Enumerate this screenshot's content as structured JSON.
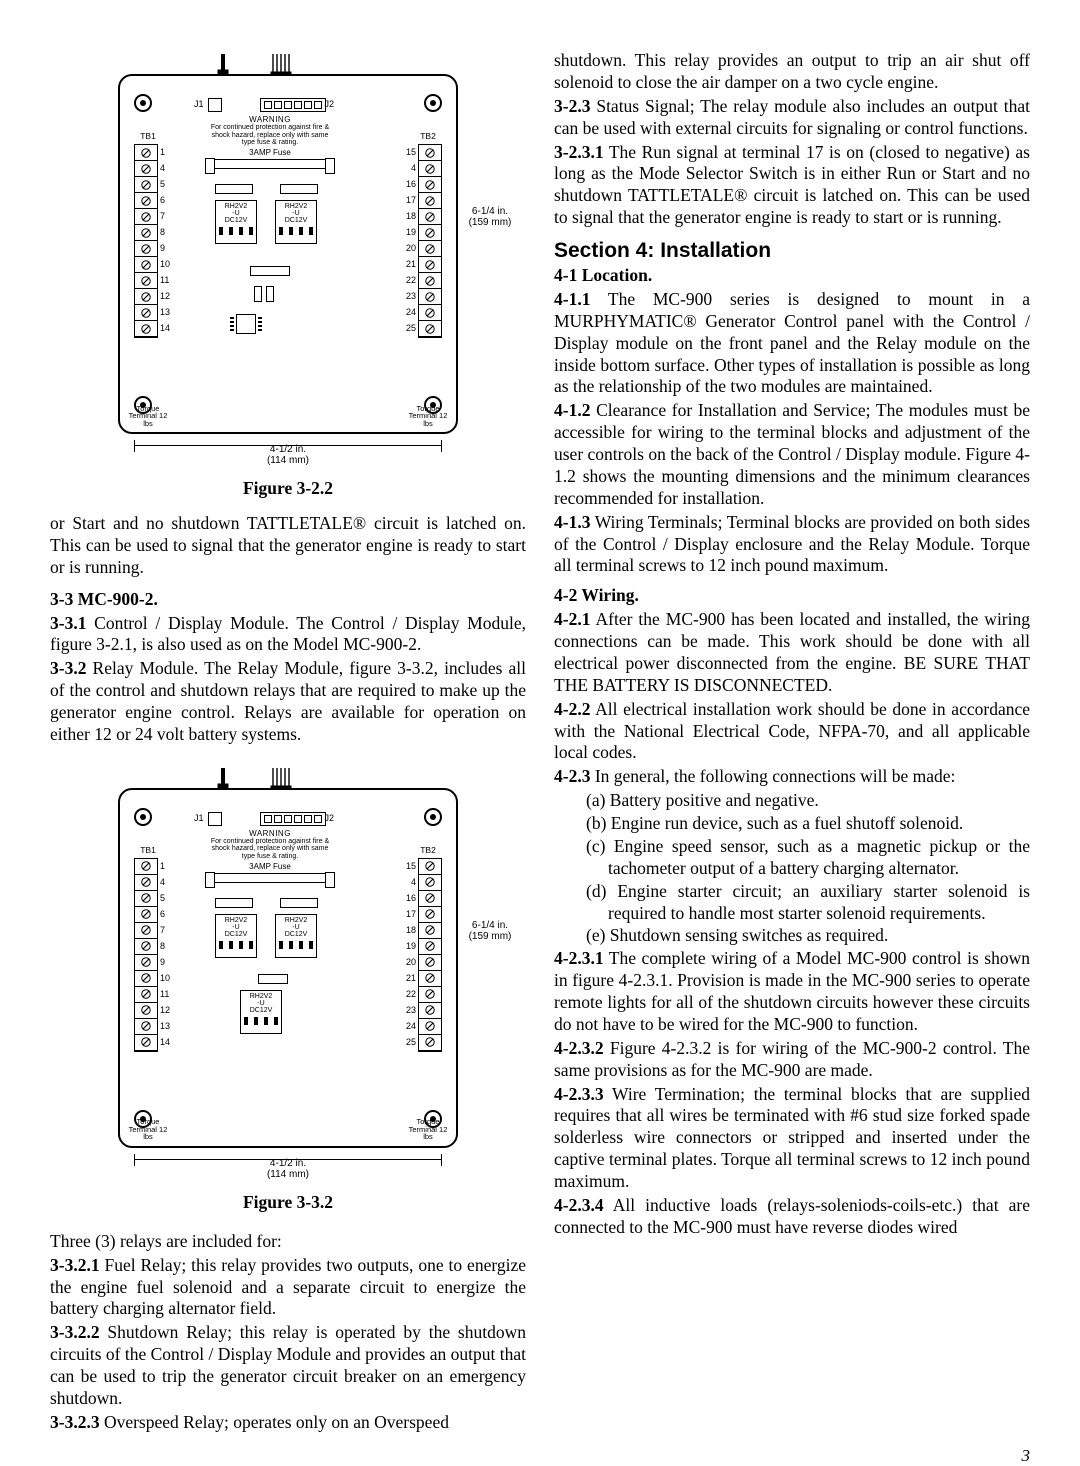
{
  "page_number": "3",
  "figure": {
    "caption_322": "Figure 3-2.2",
    "caption_332": "Figure 3-3.2",
    "j1": "J1",
    "j2": "J2",
    "tb1": "TB1",
    "tb2": "TB2",
    "warning_line1": "WARNING",
    "warning_line2": "For continued protection against fire & shock hazard, replace only with same type fuse & rating.",
    "fuse": "3AMP Fuse",
    "relay_l1": "RH2V2",
    "relay_l2": "-U",
    "relay_l3": "DC12V",
    "torque": "Torque Terminal 12 lbs",
    "dim_side_in": "6-1/4 in.",
    "dim_side_mm": "(159 mm)",
    "dim_bottom_in": "4-1/2 in.",
    "dim_bottom_mm": "(114 mm)",
    "left_nums": [
      "1",
      "4",
      "5",
      "6",
      "7",
      "8",
      "9",
      "10",
      "11",
      "12",
      "13",
      "14"
    ],
    "right_nums": [
      "15",
      "4",
      "16",
      "17",
      "18",
      "19",
      "20",
      "21",
      "22",
      "23",
      "24",
      "25"
    ]
  },
  "left_col": {
    "p_intro": "or Start and no shutdown TATTLETALE® circuit is latched on.  This can be used to signal that the generator engine is ready to start or is running.",
    "h_33": "3-3  MC-900-2.",
    "p_331": "3-3.1  Control / Display Module.  The Control / Display Module, figure 3-2.1, is also used as on the Model MC-900-2.",
    "p_332": "3-3.2  Relay Module.  The Relay Module, figure 3-3.2, includes all of the control and shutdown relays that are required to make up the generator engine control.  Relays are available for operation on either 12 or 24 volt battery systems.",
    "p_three_relays": "Three (3) relays are included for:",
    "p_3321": "3-3.2.1  Fuel Relay;  this relay provides two outputs, one to energize the engine fuel solenoid and a separate circuit to energize the battery charging alternator field.",
    "p_3322": "3-3.2.2  Shutdown Relay;  this relay is operated by the shutdown circuits of the Control / Display Module and provides an output that can be used to trip the generator circuit breaker on an emergency shutdown.",
    "p_3323": "3-3.2.3  Overspeed Relay;  operates only on an Overspeed"
  },
  "right_col": {
    "p_shutdown": "shutdown.  This relay provides an output to trip an air shut off solenoid to close the air damper on a two cycle engine.",
    "p_323": "3-2.3  Status Signal;  The relay module also includes an output that can be used with external circuits for signaling or control functions.",
    "p_3231": "3-2.3.1  The Run signal at terminal 17 is on (closed to negative) as long as the Mode Selector Switch is in either Run or Start and no shutdown TATTLETALE® circuit is latched on.  This can be used to signal that the generator engine is ready to start or is running.",
    "h_section4": "Section 4: Installation",
    "h_41": "4-1  Location.",
    "p_411": "4-1.1 The MC-900 series is designed to mount in a MURPHYMATIC® Generator Control panel with the Control / Display module on the front panel and the Relay module on the inside bottom surface.  Other types of installation is possible as long as the relationship of the two modules are maintained.",
    "p_412": "4-1.2  Clearance for Installation and Service; The modules must be accessible for wiring to the terminal blocks and adjustment of the user controls on the back of the Control / Display module.  Figure 4-1.2 shows the mounting dimensions and the minimum clearances recommended for installation.",
    "p_413": "4-1.3  Wiring Terminals;  Terminal blocks are provided on both sides of the Control / Display enclosure and the Relay Module.  Torque all terminal screws to 12 inch pound maximum.",
    "h_42": "4-2  Wiring.",
    "p_421": "4-2.1  After the MC-900 has been located and installed, the wiring connections can be made.  This work should be done with all electrical power disconnected from the engine. BE SURE THAT THE BATTERY IS DISCONNECTED.",
    "p_422": "4-2.2  All electrical installation work should be done in accordance with the National Electrical Code, NFPA-70, and all applicable local codes.",
    "p_423": "4-2.3  In general, the following connections will be made:",
    "list_423": {
      "a": "(a)  Battery positive and negative.",
      "b": "(b)  Engine run device, such as a fuel shutoff solenoid.",
      "c": "(c)  Engine speed sensor, such as a magnetic pickup or the tachometer output of a battery charging alternator.",
      "d": "(d)  Engine starter circuit; an auxiliary starter solenoid is required to handle most starter solenoid requirements.",
      "e": "(e)  Shutdown sensing switches as required."
    },
    "p_4231": "4-2.3.1  The complete wiring of a Model MC-900 control is shown in figure 4-2.3.1.  Provision is made in the MC-900 series to operate remote lights for all of the shutdown circuits however these circuits do not have to be wired for the MC-900 to function.",
    "p_4232": "4-2.3.2  Figure 4-2.3.2 is for wiring of the MC-900-2 control.  The same provisions as for the MC-900 are made.",
    "p_4233": "4-2.3.3  Wire Termination; the terminal blocks that are supplied requires that all wires be terminated with #6 stud size forked spade solderless wire connectors or stripped and inserted under the captive terminal plates.  Torque all terminal screws to 12 inch pound maximum.",
    "p_4234": "4-2.3.4  All inductive loads (relays-soleniods-coils-etc.) that are connected to the MC-900 must have reverse diodes wired"
  }
}
